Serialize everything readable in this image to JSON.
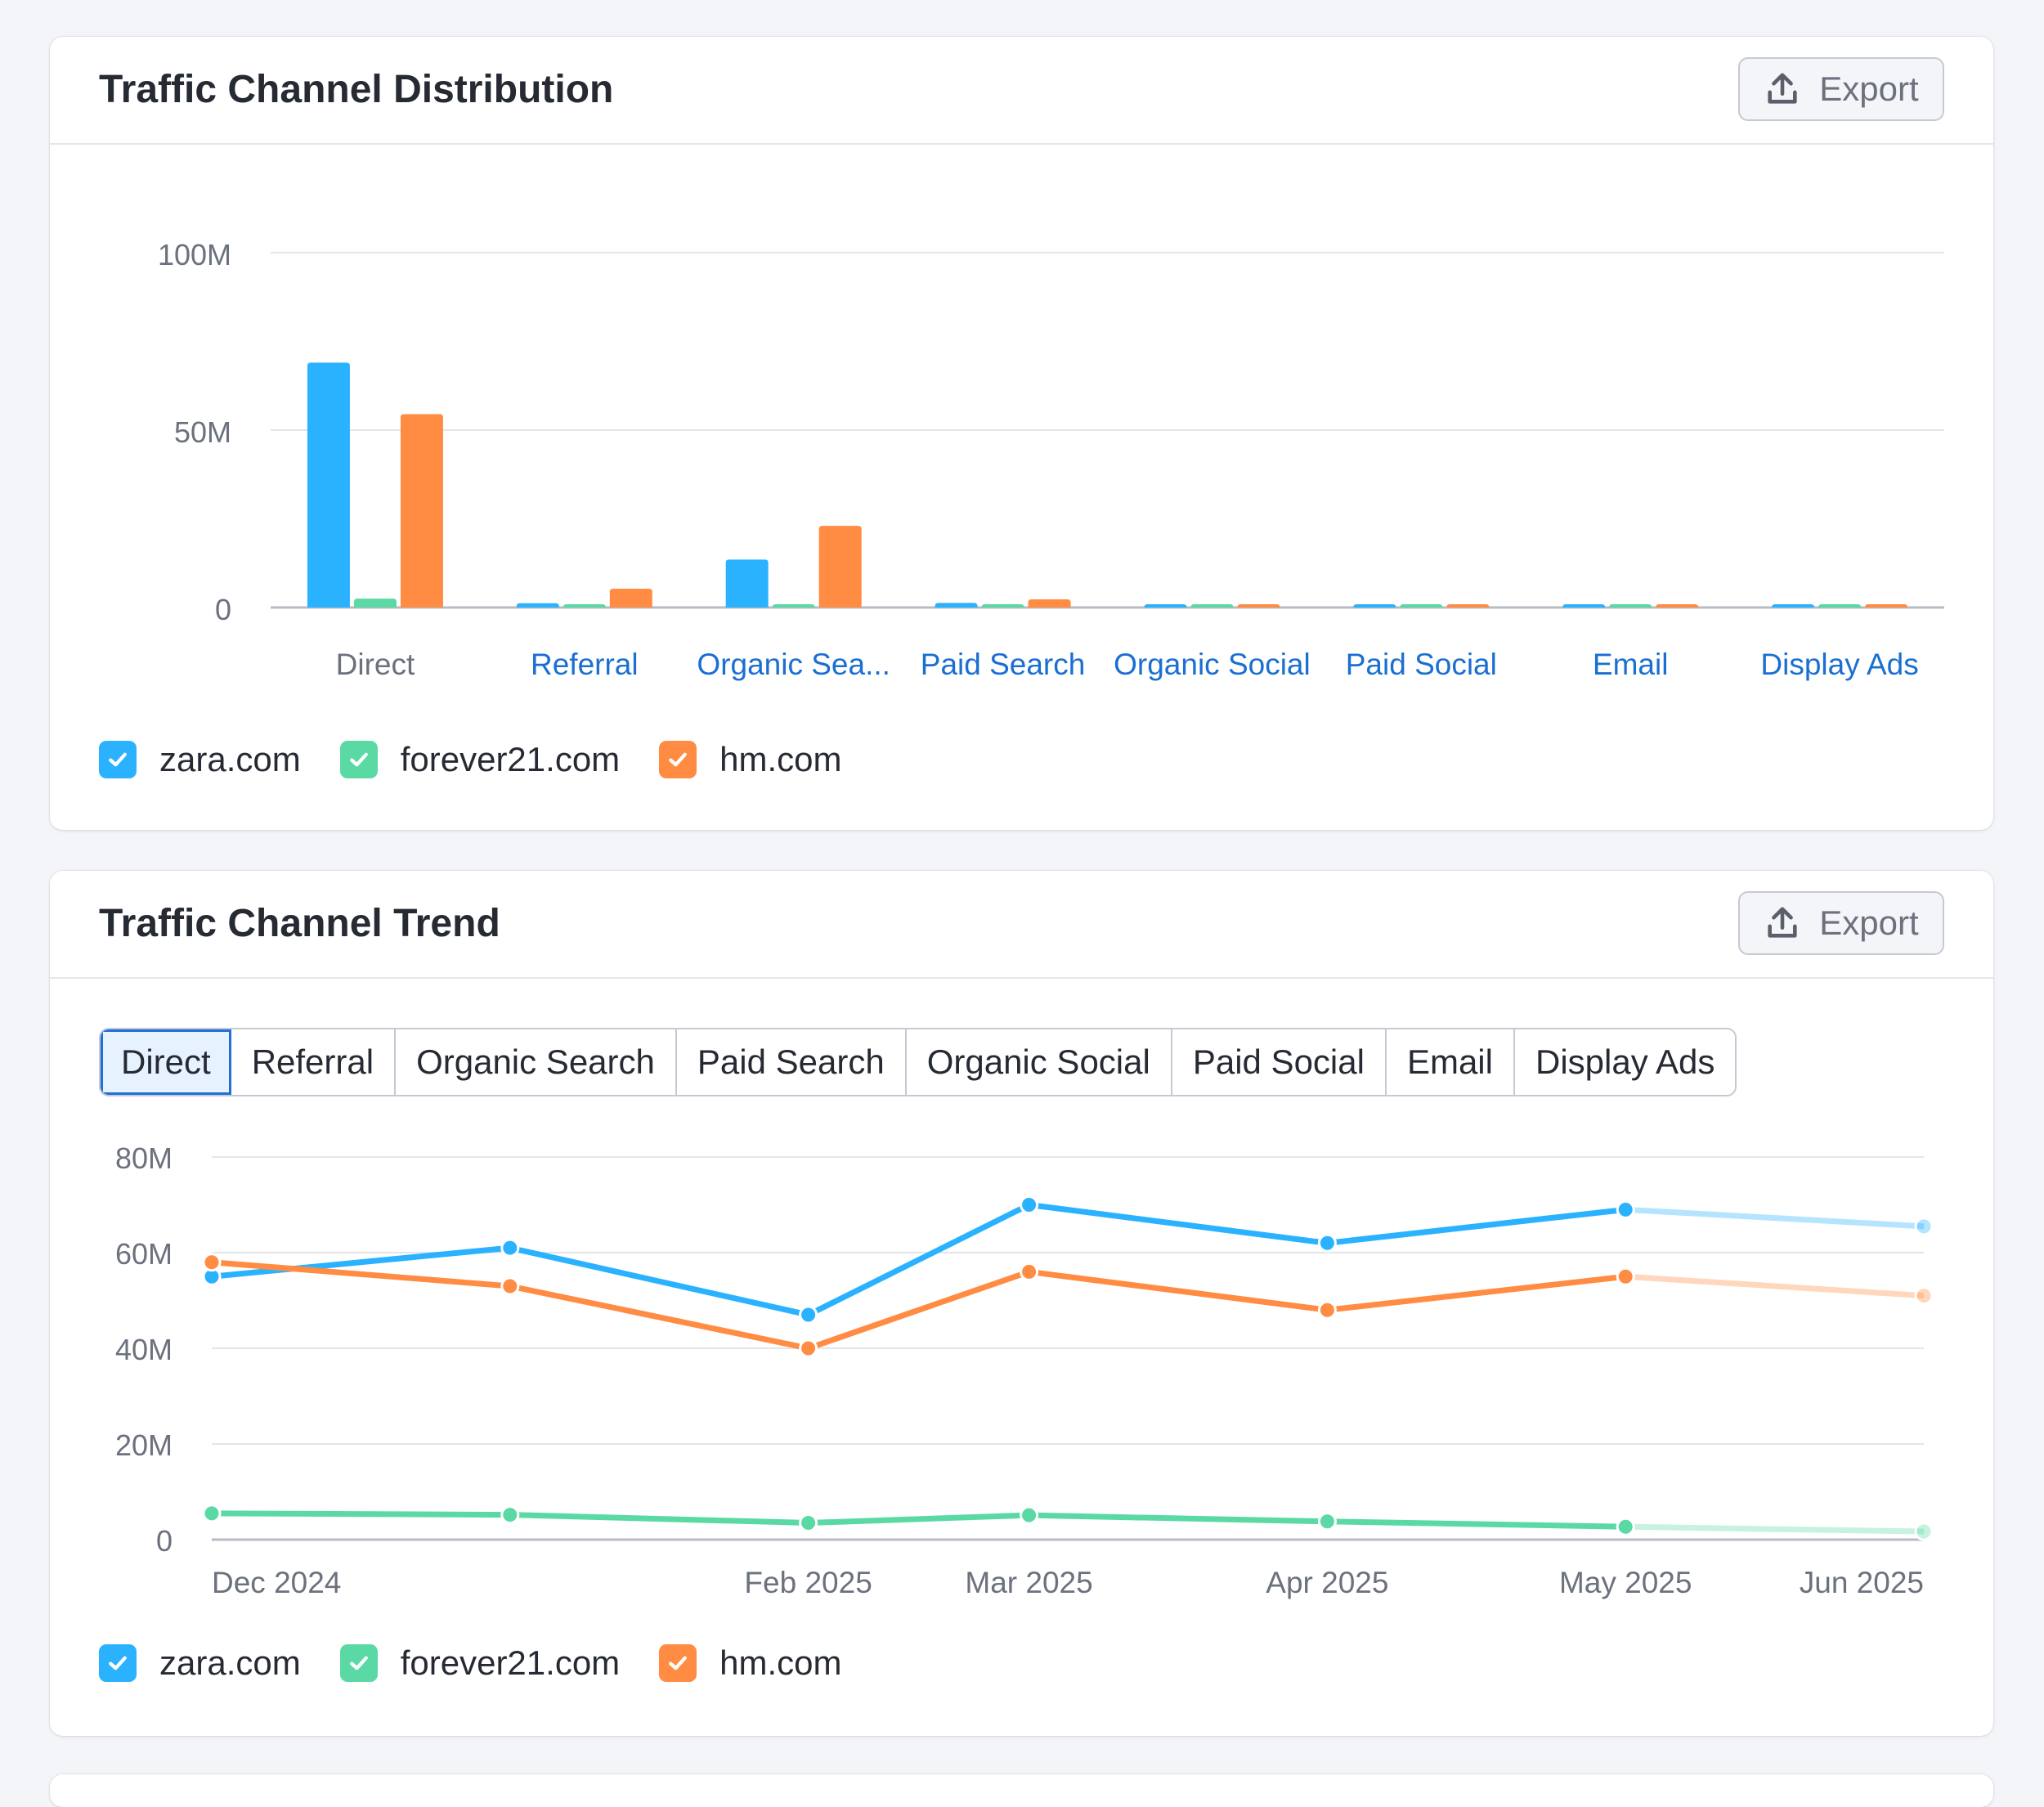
{
  "distribution": {
    "title": "Traffic Channel Distribution",
    "export_label": "Export"
  },
  "trend": {
    "title": "Traffic Channel Trend",
    "export_label": "Export",
    "tabs": [
      "Direct",
      "Referral",
      "Organic Search",
      "Paid Search",
      "Organic Social",
      "Paid Social",
      "Email",
      "Display Ads"
    ],
    "active_tab": "Direct"
  },
  "legend": [
    {
      "name": "zara.com",
      "color": "#2bb2ff",
      "checked": true
    },
    {
      "name": "forever21.com",
      "color": "#5bd9a4",
      "checked": true
    },
    {
      "name": "hm.com",
      "color": "#ff8c42",
      "checked": true
    }
  ],
  "chart_data": [
    {
      "type": "bar",
      "title": "Traffic Channel Distribution",
      "categories": [
        "Direct",
        "Referral",
        "Organic Sea...",
        "Paid Search",
        "Organic Social",
        "Paid Social",
        "Email",
        "Display Ads"
      ],
      "series": [
        {
          "name": "zara.com",
          "color": "#2bb2ff",
          "values": [
            69,
            1.2,
            13.5,
            1.3,
            0.7,
            0.6,
            0.6,
            0.5
          ]
        },
        {
          "name": "forever21.com",
          "color": "#5bd9a4",
          "values": [
            2.5,
            0.8,
            0.9,
            0.7,
            0.6,
            0.6,
            0.4,
            0.4
          ]
        },
        {
          "name": "hm.com",
          "color": "#ff8c42",
          "values": [
            54.5,
            5.3,
            23.0,
            2.3,
            0.9,
            0.7,
            0.6,
            0.7
          ]
        }
      ],
      "y_ticks": [
        "0",
        "50M",
        "100M"
      ],
      "ylim": [
        0,
        100
      ],
      "y_unit": "M",
      "grid": true,
      "legend_position": "bottom-left"
    },
    {
      "type": "line",
      "title": "Traffic Channel Trend",
      "x": [
        "2024-12",
        "2025-01",
        "2025-02",
        "2025-03",
        "2025-04",
        "2025-05",
        "2025-06"
      ],
      "x_tick_labels": [
        {
          "label": "Dec 2024",
          "index": 0
        },
        {
          "label": "Feb 2025",
          "index": 2
        },
        {
          "label": "Mar 2025",
          "index": 3
        },
        {
          "label": "Apr 2025",
          "index": 4
        },
        {
          "label": "May 2025",
          "index": 5
        },
        {
          "label": "Jun 2025",
          "index": 6
        }
      ],
      "series": [
        {
          "name": "zara.com",
          "color": "#2bb2ff",
          "values": [
            55,
            61,
            47,
            70,
            62,
            69,
            65.5
          ]
        },
        {
          "name": "forever21.com",
          "color": "#5bd9a4",
          "values": [
            5.5,
            5.2,
            3.5,
            5.1,
            3.8,
            2.7,
            1.7
          ]
        },
        {
          "name": "hm.com",
          "color": "#ff8c42",
          "values": [
            58,
            53,
            40,
            56,
            48,
            55,
            51
          ]
        }
      ],
      "projected_from_index": 5,
      "y_ticks": [
        "0",
        "20M",
        "40M",
        "60M",
        "80M"
      ],
      "ylim": [
        0,
        80
      ],
      "y_unit": "M",
      "grid": true,
      "legend_position": "bottom-left"
    }
  ]
}
